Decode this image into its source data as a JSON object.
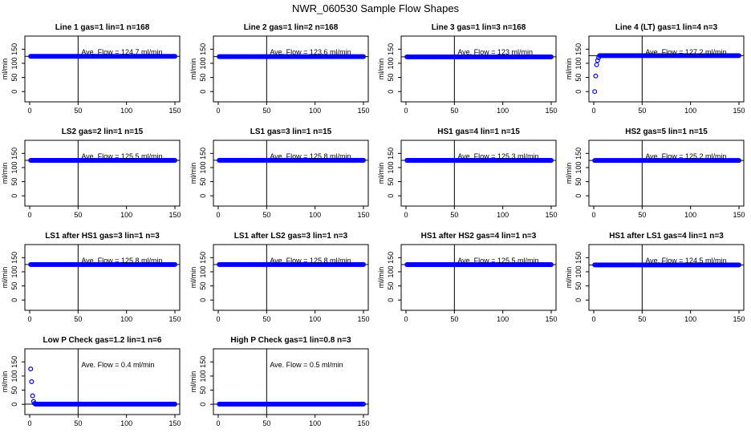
{
  "figure": {
    "title": "NWR_060530  Sample Flow Shapes"
  },
  "colors": {
    "points": "#0000ff",
    "axes": "#000000",
    "background": "#ffffff"
  },
  "chart_data": [
    {
      "type": "scatter",
      "title": "Line 1 gas=1 lin=1 n=168",
      "ylabel": "ml/min",
      "xlim": [
        0,
        150
      ],
      "ylim": [
        -25,
        185
      ],
      "xticks": [
        0,
        50,
        100,
        150
      ],
      "yticks": [
        0,
        50,
        100,
        150
      ],
      "vline": 50,
      "hline": 124.7,
      "annotation": "Ave. Flow =  124.7  ml/min",
      "points": {
        "x_start": 1,
        "x_end": 150,
        "y_first": [],
        "y_rest": 124.7
      }
    },
    {
      "type": "scatter",
      "title": "Line 2 gas=1 lin=2 n=168",
      "ylabel": "ml/min",
      "xlim": [
        0,
        150
      ],
      "ylim": [
        -25,
        185
      ],
      "xticks": [
        0,
        50,
        100,
        150
      ],
      "yticks": [
        0,
        50,
        100,
        150
      ],
      "vline": 50,
      "hline": 123.6,
      "annotation": "Ave. Flow =  123.6  ml/min",
      "points": {
        "x_start": 1,
        "x_end": 150,
        "y_first": [],
        "y_rest": 123.6
      }
    },
    {
      "type": "scatter",
      "title": "Line 3 gas=1 lin=3 n=168",
      "ylabel": "ml/min",
      "xlim": [
        0,
        150
      ],
      "ylim": [
        -25,
        185
      ],
      "xticks": [
        0,
        50,
        100,
        150
      ],
      "yticks": [
        0,
        50,
        100,
        150
      ],
      "vline": 50,
      "hline": 123,
      "annotation": "Ave. Flow =  123  ml/min",
      "points": {
        "x_start": 1,
        "x_end": 150,
        "y_first": [],
        "y_rest": 123
      }
    },
    {
      "type": "scatter",
      "title": "Line 4 (LT) gas=1 lin=4 n=3",
      "ylabel": "ml/min",
      "xlim": [
        0,
        150
      ],
      "ylim": [
        -25,
        185
      ],
      "xticks": [
        0,
        50,
        100,
        150
      ],
      "yticks": [
        0,
        50,
        100,
        150
      ],
      "vline": 50,
      "hline": 127.2,
      "annotation": "Ave. Flow =  127.2  ml/min",
      "points": {
        "x_start": 1,
        "x_end": 150,
        "y_first": [
          0,
          55,
          95,
          110,
          120
        ],
        "y_rest": 127.2
      }
    },
    {
      "type": "scatter",
      "title": "LS2 gas=2 lin=1 n=15",
      "ylabel": "ml/min",
      "xlim": [
        0,
        150
      ],
      "ylim": [
        -25,
        185
      ],
      "xticks": [
        0,
        50,
        100,
        150
      ],
      "yticks": [
        0,
        50,
        100,
        150
      ],
      "vline": 50,
      "hline": 125.5,
      "annotation": "Ave. Flow =  125.5  ml/min",
      "points": {
        "x_start": 1,
        "x_end": 150,
        "y_first": [],
        "y_rest": 125.5
      }
    },
    {
      "type": "scatter",
      "title": "LS1 gas=3 lin=1 n=15",
      "ylabel": "ml/min",
      "xlim": [
        0,
        150
      ],
      "ylim": [
        -25,
        185
      ],
      "xticks": [
        0,
        50,
        100,
        150
      ],
      "yticks": [
        0,
        50,
        100,
        150
      ],
      "vline": 50,
      "hline": 125.8,
      "annotation": "Ave. Flow =  125.8  ml/min",
      "points": {
        "x_start": 1,
        "x_end": 150,
        "y_first": [],
        "y_rest": 125.8
      }
    },
    {
      "type": "scatter",
      "title": "HS1 gas=4 lin=1 n=15",
      "ylabel": "ml/min",
      "xlim": [
        0,
        150
      ],
      "ylim": [
        -25,
        185
      ],
      "xticks": [
        0,
        50,
        100,
        150
      ],
      "yticks": [
        0,
        50,
        100,
        150
      ],
      "vline": 50,
      "hline": 125.3,
      "annotation": "Ave. Flow =  125.3  ml/min",
      "points": {
        "x_start": 1,
        "x_end": 150,
        "y_first": [],
        "y_rest": 125.3
      }
    },
    {
      "type": "scatter",
      "title": "HS2 gas=5 lin=1 n=15",
      "ylabel": "ml/min",
      "xlim": [
        0,
        150
      ],
      "ylim": [
        -25,
        185
      ],
      "xticks": [
        0,
        50,
        100,
        150
      ],
      "yticks": [
        0,
        50,
        100,
        150
      ],
      "vline": 50,
      "hline": 125.2,
      "annotation": "Ave. Flow =  125.2  ml/min",
      "points": {
        "x_start": 1,
        "x_end": 150,
        "y_first": [],
        "y_rest": 125.2
      }
    },
    {
      "type": "scatter",
      "title": "LS1 after HS1 gas=3 lin=1 n=3",
      "ylabel": "ml/min",
      "xlim": [
        0,
        150
      ],
      "ylim": [
        -25,
        185
      ],
      "xticks": [
        0,
        50,
        100,
        150
      ],
      "yticks": [
        0,
        50,
        100,
        150
      ],
      "vline": 50,
      "hline": 125.8,
      "annotation": "Ave. Flow =  125.8  ml/min",
      "points": {
        "x_start": 1,
        "x_end": 150,
        "y_first": [],
        "y_rest": 125.8
      }
    },
    {
      "type": "scatter",
      "title": "LS1 after LS2 gas=3 lin=1 n=3",
      "ylabel": "ml/min",
      "xlim": [
        0,
        150
      ],
      "ylim": [
        -25,
        185
      ],
      "xticks": [
        0,
        50,
        100,
        150
      ],
      "yticks": [
        0,
        50,
        100,
        150
      ],
      "vline": 50,
      "hline": 125.8,
      "annotation": "Ave. Flow =  125.8  ml/min",
      "points": {
        "x_start": 1,
        "x_end": 150,
        "y_first": [],
        "y_rest": 125.8
      }
    },
    {
      "type": "scatter",
      "title": "HS1 after HS2 gas=4 lin=1 n=3",
      "ylabel": "ml/min",
      "xlim": [
        0,
        150
      ],
      "ylim": [
        -25,
        185
      ],
      "xticks": [
        0,
        50,
        100,
        150
      ],
      "yticks": [
        0,
        50,
        100,
        150
      ],
      "vline": 50,
      "hline": 125.5,
      "annotation": "Ave. Flow =  125.5  ml/min",
      "points": {
        "x_start": 1,
        "x_end": 150,
        "y_first": [],
        "y_rest": 125.5
      }
    },
    {
      "type": "scatter",
      "title": "HS1 after LS1 gas=4 lin=1 n=3",
      "ylabel": "ml/min",
      "xlim": [
        0,
        150
      ],
      "ylim": [
        -25,
        185
      ],
      "xticks": [
        0,
        50,
        100,
        150
      ],
      "yticks": [
        0,
        50,
        100,
        150
      ],
      "vline": 50,
      "hline": 124.5,
      "annotation": "Ave. Flow =  124.5  ml/min",
      "points": {
        "x_start": 1,
        "x_end": 150,
        "y_first": [],
        "y_rest": 124.5
      }
    },
    {
      "type": "scatter",
      "title": "Low P Check gas=1.2 lin=1 n=6",
      "ylabel": "ml/min",
      "xlim": [
        0,
        150
      ],
      "ylim": [
        -25,
        185
      ],
      "xticks": [
        0,
        50,
        100,
        150
      ],
      "yticks": [
        0,
        50,
        100,
        150
      ],
      "vline": 50,
      "hline": 0.4,
      "annotation": "Ave. Flow =  0.4  ml/min",
      "points": {
        "x_start": 1,
        "x_end": 150,
        "y_first": [
          125,
          80,
          30,
          10,
          3
        ],
        "y_rest": 0.4
      }
    },
    {
      "type": "scatter",
      "title": "High P Check gas=1 lin=0.8 n=3",
      "ylabel": "ml/min",
      "xlim": [
        0,
        150
      ],
      "ylim": [
        -25,
        185
      ],
      "xticks": [
        0,
        50,
        100,
        150
      ],
      "yticks": [
        0,
        50,
        100,
        150
      ],
      "vline": 50,
      "hline": 0.5,
      "annotation": "Ave. Flow =  0.5  ml/min",
      "points": {
        "x_start": 1,
        "x_end": 150,
        "y_first": [],
        "y_rest": 0.5
      }
    }
  ]
}
